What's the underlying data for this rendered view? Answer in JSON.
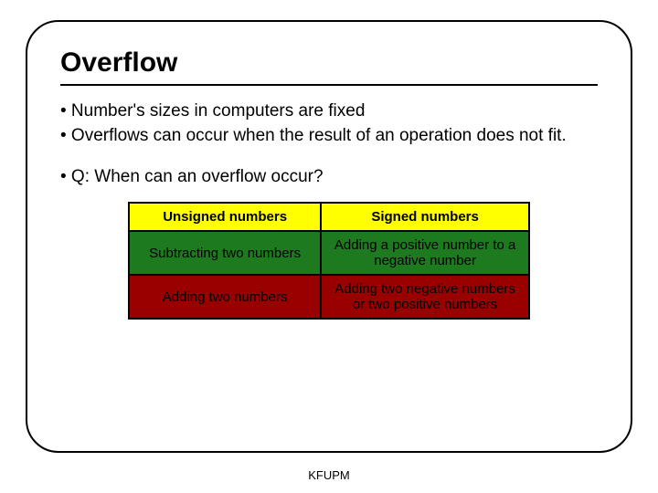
{
  "slide": {
    "title": "Overflow",
    "bullets": [
      "• Number's sizes in computers are fixed",
      "• Overflows can occur when the result of an operation does not fit."
    ],
    "question": "• Q: When can an overflow occur?",
    "footer": "KFUPM"
  },
  "table": {
    "type": "table",
    "columns": [
      "Unsigned numbers",
      "Signed numbers"
    ],
    "rows": [
      [
        "Subtracting two numbers",
        "Adding a positive number to a negative number"
      ],
      [
        "Adding two numbers",
        "Adding two negative numbers or two positive numbers"
      ]
    ],
    "header_bg": "#ffff00",
    "row_colors": [
      "#1e7a1e",
      "#990000"
    ],
    "header_text_color": "#000000",
    "cell_text_color": "#000000",
    "border_color": "#000000",
    "col_widths": [
      "48%",
      "52%"
    ],
    "header_fontsize": 15,
    "cell_fontsize": 15
  },
  "frame": {
    "border_color": "#000000",
    "border_radius": 36,
    "background_color": "#ffffff"
  }
}
